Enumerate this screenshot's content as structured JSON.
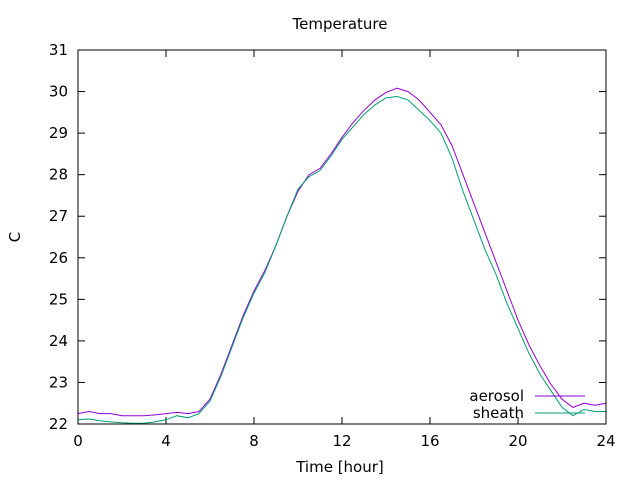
{
  "chart_data": {
    "type": "line",
    "title": "Temperature",
    "xlabel": "Time [hour]",
    "ylabel": "C",
    "xlim": [
      0,
      24
    ],
    "ylim": [
      22,
      31
    ],
    "x_ticks": [
      0,
      4,
      8,
      12,
      16,
      20,
      24
    ],
    "y_ticks": [
      22,
      23,
      24,
      25,
      26,
      27,
      28,
      29,
      30,
      31
    ],
    "grid": false,
    "legend_position": "bottom-right",
    "series": [
      {
        "name": "aerosol",
        "color": "#9400d3",
        "points": [
          [
            0,
            22.25
          ],
          [
            0.5,
            22.3
          ],
          [
            1,
            22.25
          ],
          [
            1.5,
            22.25
          ],
          [
            2,
            22.2
          ],
          [
            2.5,
            22.2
          ],
          [
            3,
            22.2
          ],
          [
            3.5,
            22.22
          ],
          [
            4,
            22.25
          ],
          [
            4.5,
            22.28
          ],
          [
            5,
            22.25
          ],
          [
            5.5,
            22.3
          ],
          [
            6,
            22.6
          ],
          [
            6.5,
            23.2
          ],
          [
            7,
            23.9
          ],
          [
            7.5,
            24.6
          ],
          [
            8,
            25.2
          ],
          [
            8.5,
            25.7
          ],
          [
            9,
            26.3
          ],
          [
            9.5,
            27.0
          ],
          [
            10,
            27.6
          ],
          [
            10.5,
            28.0
          ],
          [
            11,
            28.15
          ],
          [
            11.5,
            28.5
          ],
          [
            12,
            28.9
          ],
          [
            12.5,
            29.25
          ],
          [
            13,
            29.55
          ],
          [
            13.5,
            29.8
          ],
          [
            14,
            29.98
          ],
          [
            14.5,
            30.08
          ],
          [
            15,
            30.0
          ],
          [
            15.5,
            29.8
          ],
          [
            16,
            29.5
          ],
          [
            16.5,
            29.2
          ],
          [
            17,
            28.7
          ],
          [
            17.5,
            28.0
          ],
          [
            18,
            27.3
          ],
          [
            18.5,
            26.6
          ],
          [
            19,
            25.9
          ],
          [
            19.5,
            25.2
          ],
          [
            20,
            24.5
          ],
          [
            20.5,
            23.9
          ],
          [
            21,
            23.4
          ],
          [
            21.5,
            22.95
          ],
          [
            22,
            22.6
          ],
          [
            22.5,
            22.4
          ],
          [
            23,
            22.5
          ],
          [
            23.5,
            22.45
          ],
          [
            24,
            22.5
          ]
        ]
      },
      {
        "name": "sheath",
        "color": "#009e73",
        "points": [
          [
            0,
            22.1
          ],
          [
            0.5,
            22.12
          ],
          [
            1,
            22.08
          ],
          [
            1.5,
            22.05
          ],
          [
            2,
            22.03
          ],
          [
            2.5,
            22.02
          ],
          [
            3,
            22.02
          ],
          [
            3.5,
            22.05
          ],
          [
            4,
            22.1
          ],
          [
            4.5,
            22.2
          ],
          [
            5,
            22.15
          ],
          [
            5.5,
            22.25
          ],
          [
            6,
            22.55
          ],
          [
            6.5,
            23.15
          ],
          [
            7,
            23.85
          ],
          [
            7.5,
            24.55
          ],
          [
            8,
            25.15
          ],
          [
            8.5,
            25.65
          ],
          [
            9,
            26.3
          ],
          [
            9.5,
            27.0
          ],
          [
            10,
            27.65
          ],
          [
            10.5,
            27.95
          ],
          [
            11,
            28.1
          ],
          [
            11.5,
            28.45
          ],
          [
            12,
            28.85
          ],
          [
            12.5,
            29.15
          ],
          [
            13,
            29.45
          ],
          [
            13.5,
            29.68
          ],
          [
            14,
            29.85
          ],
          [
            14.5,
            29.88
          ],
          [
            15,
            29.8
          ],
          [
            15.5,
            29.55
          ],
          [
            16,
            29.3
          ],
          [
            16.5,
            29.0
          ],
          [
            17,
            28.4
          ],
          [
            17.5,
            27.6
          ],
          [
            18,
            26.9
          ],
          [
            18.5,
            26.2
          ],
          [
            19,
            25.6
          ],
          [
            19.5,
            24.9
          ],
          [
            20,
            24.3
          ],
          [
            20.5,
            23.7
          ],
          [
            21,
            23.2
          ],
          [
            21.5,
            22.8
          ],
          [
            22,
            22.4
          ],
          [
            22.5,
            22.2
          ],
          [
            23,
            22.35
          ],
          [
            23.5,
            22.3
          ],
          [
            24,
            22.3
          ]
        ]
      }
    ]
  }
}
